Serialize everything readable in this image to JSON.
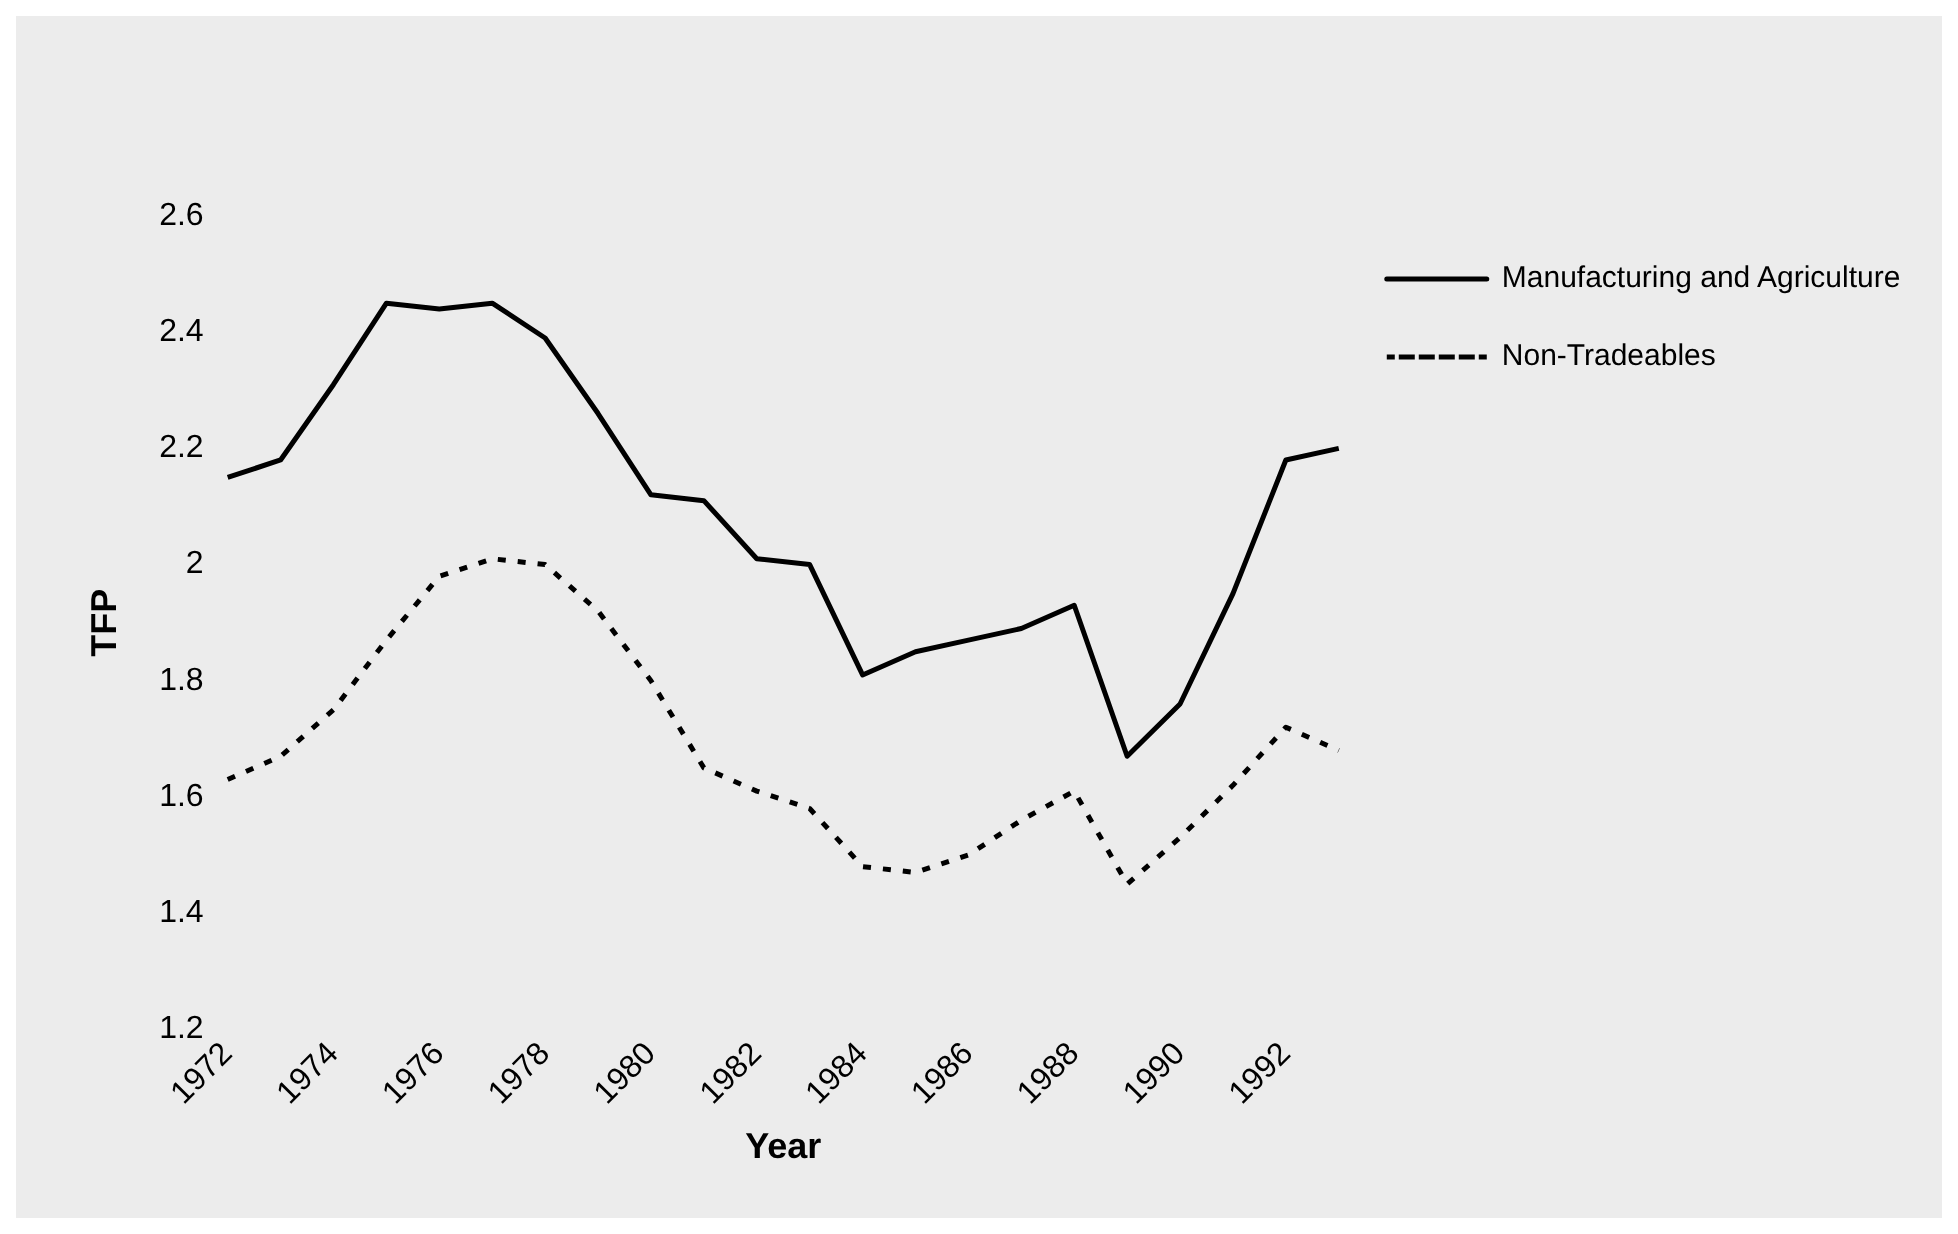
{
  "chart_data": {
    "type": "line",
    "xlabel": "Year",
    "ylabel": "TFP",
    "categories": [
      "1972",
      null,
      "1974",
      null,
      "1976",
      null,
      "1978",
      null,
      "1980",
      null,
      "1982",
      null,
      "1984",
      null,
      "1986",
      null,
      "1988",
      null,
      "1990",
      null,
      "1992",
      null
    ],
    "series": [
      {
        "name": "Manufacturing and Agriculture",
        "color": "#000000",
        "line_style": "solid",
        "values": [
          2.15,
          2.18,
          2.31,
          2.45,
          2.44,
          2.45,
          2.39,
          2.26,
          2.12,
          2.11,
          2.01,
          2.0,
          1.81,
          1.85,
          1.87,
          1.89,
          1.93,
          1.67,
          1.76,
          1.95,
          2.18,
          2.2
        ]
      },
      {
        "name": "Non-Tradeables",
        "color": "#000000",
        "line_style": "dotted",
        "values": [
          1.63,
          1.67,
          1.75,
          1.87,
          1.98,
          2.01,
          2.0,
          1.92,
          1.8,
          1.65,
          1.61,
          1.58,
          1.48,
          1.47,
          1.5,
          1.56,
          1.61,
          1.45,
          1.53,
          1.62,
          1.72,
          1.68
        ]
      }
    ],
    "ylim": [
      1.2,
      2.6
    ],
    "yticks": [
      1.2,
      1.4,
      1.6,
      1.8,
      2,
      2.2,
      2.4,
      2.6
    ],
    "grid": false,
    "legend": "right",
    "marker": "none"
  }
}
